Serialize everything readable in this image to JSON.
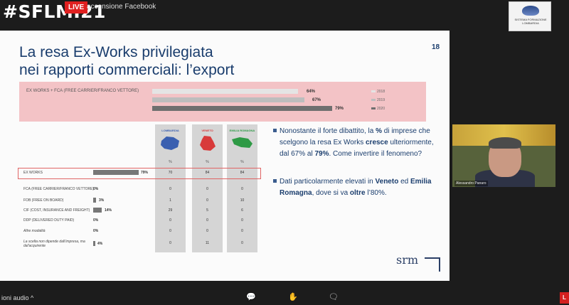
{
  "header": {
    "hashtag": "#SFLMI21",
    "live_badge": "LIVE",
    "stream_title": "accensione Facebook",
    "logo_text": "SISTEMA FORMAZIONE LOMBARDIA"
  },
  "slide": {
    "title_line1": "La resa Ex-Works privilegiata",
    "title_line2": "nei rapporti commerciali: l’export",
    "page_number": "18",
    "summary_label": "EX WORKS + FCA (FREE CARRIER/FRANCO VETTORE)",
    "summary_values": [
      "64%",
      "67%",
      "79%"
    ],
    "legend": [
      "2018",
      "2019",
      "2020"
    ],
    "regions": [
      {
        "name": "LOMBARDIA",
        "color": "#3a5fb0",
        "pct_label": "%"
      },
      {
        "name": "VENETO",
        "color": "#d83a3a",
        "pct_label": "%"
      },
      {
        "name": "EMILIA ROMAGNA",
        "color": "#2e9a45",
        "pct_label": "%"
      }
    ],
    "rows": [
      {
        "label": "EX WORKS",
        "pct": "79%",
        "v1": "70",
        "v2": "84",
        "v3": "84",
        "italic": false
      },
      {
        "label": "FCA (FREE CARRIER/FRANCO VETTORE)",
        "pct": "0%",
        "v1": "0",
        "v2": "0",
        "v3": "0",
        "italic": false
      },
      {
        "label": "FOB (FREE ON BOARD)",
        "pct": "3%",
        "v1": "1",
        "v2": "0",
        "v3": "10",
        "italic": false
      },
      {
        "label": "CIF (COST, INSURANCE AND FREIGHT)",
        "pct": "14%",
        "v1": "29",
        "v2": "5",
        "v3": "6",
        "italic": false
      },
      {
        "label": "DDP (DELIVERED DUTY PAID)",
        "pct": "0%",
        "v1": "0",
        "v2": "0",
        "v3": "0",
        "italic": false
      },
      {
        "label": "Altre modalità",
        "pct": "0%",
        "v1": "0",
        "v2": "0",
        "v3": "0",
        "italic": true
      },
      {
        "label": "La scelta non dipende dall’impresa, ma dal'acquirente",
        "pct": "4%",
        "v1": "0",
        "v2": "11",
        "v3": "0",
        "italic": true
      }
    ],
    "bullet1": {
      "t1": "Nonostante il forte dibattito, la ",
      "b1": "%",
      "t2": " di imprese che scelgono la resa Ex Works ",
      "b2": "cresce",
      "t3": " ulteriormente, dal 67% al ",
      "b3": "79%",
      "t4": ". Come invertire il fenomeno?"
    },
    "bullet2": {
      "t1": "Dati particolarmente elevati in ",
      "b1": "Veneto",
      "t2": " ed ",
      "b2": "Emilia Romagna",
      "t3": ", dove si va ",
      "b3": "oltre",
      "t4": " l’80%."
    },
    "brand": "srm",
    "bar_fractions": [
      0.64,
      0.67,
      0.79
    ],
    "bar_colors": [
      "#e4e4e4",
      "#bdbdbd",
      "#6f6f6f"
    ]
  },
  "video": {
    "participant_name": "Alessandro Panaro"
  },
  "bottom": {
    "audio_label": "ioni audio",
    "chevron": "^",
    "icons": [
      "chat-icon",
      "raise-hand-icon",
      "reactions-icon"
    ],
    "corner_label": "L"
  }
}
